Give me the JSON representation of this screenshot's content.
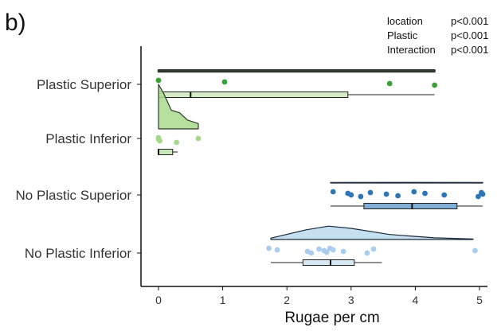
{
  "panel_label": "b)",
  "stats": [
    {
      "term": "location",
      "p": "p<0.001"
    },
    {
      "term": "Plastic",
      "p": "p<0.001"
    },
    {
      "term": "Interaction",
      "p": "p<0.001"
    }
  ],
  "chart_data": {
    "type": "raincloud",
    "xlabel": "Rugae per cm",
    "xlim": [
      -0.2,
      5.3
    ],
    "xticks": [
      0,
      1,
      2,
      3,
      4,
      5
    ],
    "grid": false,
    "categories": [
      "Plastic Superior",
      "Plastic Inferior",
      "No Plastic Superior",
      "No Plastic Inferior"
    ],
    "groups": [
      {
        "name": "Plastic Superior",
        "fill": "#b9dca2",
        "stroke": "#2f3a2f",
        "point_color": "#3aa035",
        "points": [
          0.0,
          1.03,
          3.6,
          4.3
        ],
        "box": {
          "min": 0.0,
          "q1": 0.0,
          "median": 0.5,
          "q3": 2.95,
          "max": 4.3
        },
        "density": [
          [
            0.0,
            0.02
          ],
          [
            4.3,
            0.02
          ]
        ]
      },
      {
        "name": "Plastic Inferior",
        "fill": "#a9d98d",
        "stroke": "#2f3a2f",
        "point_color": "#a3d988",
        "points": [
          0.0,
          0.0,
          0.02,
          0.28,
          0.62
        ],
        "box": {
          "min": 0.0,
          "q1": 0.0,
          "median": 0.0,
          "q3": 0.22,
          "max": 0.3
        },
        "density": [
          [
            0.0,
            1.0
          ],
          [
            0.08,
            0.8
          ],
          [
            0.2,
            0.42
          ],
          [
            0.33,
            0.36
          ],
          [
            0.45,
            0.2
          ],
          [
            0.62,
            0.12
          ]
        ]
      },
      {
        "name": "No Plastic Superior",
        "fill": "#2f76b7",
        "stroke": "#1a2a3a",
        "point_color": "#2f76b7",
        "points": [
          2.72,
          2.95,
          3.0,
          3.15,
          3.3,
          3.55,
          3.73,
          3.98,
          4.15,
          4.45,
          4.98,
          5.03,
          5.05
        ],
        "box": {
          "min": 2.68,
          "q1": 3.2,
          "median": 3.95,
          "q3": 4.65,
          "max": 5.05
        },
        "density": [
          [
            2.68,
            0.06
          ],
          [
            3.8,
            0.08
          ],
          [
            5.05,
            0.06
          ]
        ]
      },
      {
        "name": "No Plastic Inferior",
        "fill": "#bcd9ef",
        "stroke": "#1a2a3a",
        "point_color": "#a9cdec",
        "points": [
          1.72,
          1.85,
          2.32,
          2.38,
          2.5,
          2.58,
          2.62,
          2.67,
          2.72,
          2.88,
          3.25,
          3.35,
          4.93
        ],
        "box": {
          "min": 1.75,
          "q1": 2.25,
          "median": 2.68,
          "q3": 3.05,
          "max": 3.48
        },
        "density": [
          [
            1.75,
            0.05
          ],
          [
            2.3,
            0.35
          ],
          [
            2.65,
            0.48
          ],
          [
            3.0,
            0.4
          ],
          [
            3.6,
            0.18
          ],
          [
            4.3,
            0.06
          ],
          [
            4.9,
            0.02
          ]
        ]
      }
    ]
  }
}
